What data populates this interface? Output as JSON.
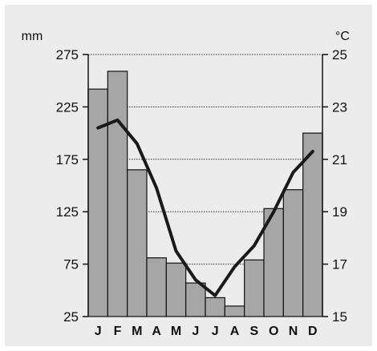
{
  "chart_data": {
    "type": "bar",
    "categories": [
      "J",
      "F",
      "M",
      "A",
      "M",
      "J",
      "J",
      "A",
      "S",
      "O",
      "N",
      "D"
    ],
    "series": [
      {
        "type": "bar",
        "axis": "left",
        "values": [
          242,
          259,
          165,
          81,
          76,
          57,
          43,
          35,
          79,
          128,
          146,
          200
        ]
      },
      {
        "type": "line",
        "axis": "right",
        "values": [
          22.2,
          22.5,
          21.6,
          19.9,
          17.5,
          16.4,
          15.8,
          16.9,
          17.7,
          19.0,
          20.5,
          21.3
        ]
      }
    ],
    "left_axis": {
      "unit": "mm",
      "ylim": [
        25,
        275
      ],
      "ticks": [
        25,
        75,
        125,
        175,
        225,
        275
      ]
    },
    "right_axis": {
      "unit": "°C",
      "ylim": [
        15,
        25
      ],
      "ticks": [
        15,
        17,
        19,
        21,
        23,
        25
      ]
    },
    "grid": true,
    "colors": {
      "bar": "#a6a6a6",
      "line": "#1a1a1a",
      "background": "#ececec"
    }
  }
}
